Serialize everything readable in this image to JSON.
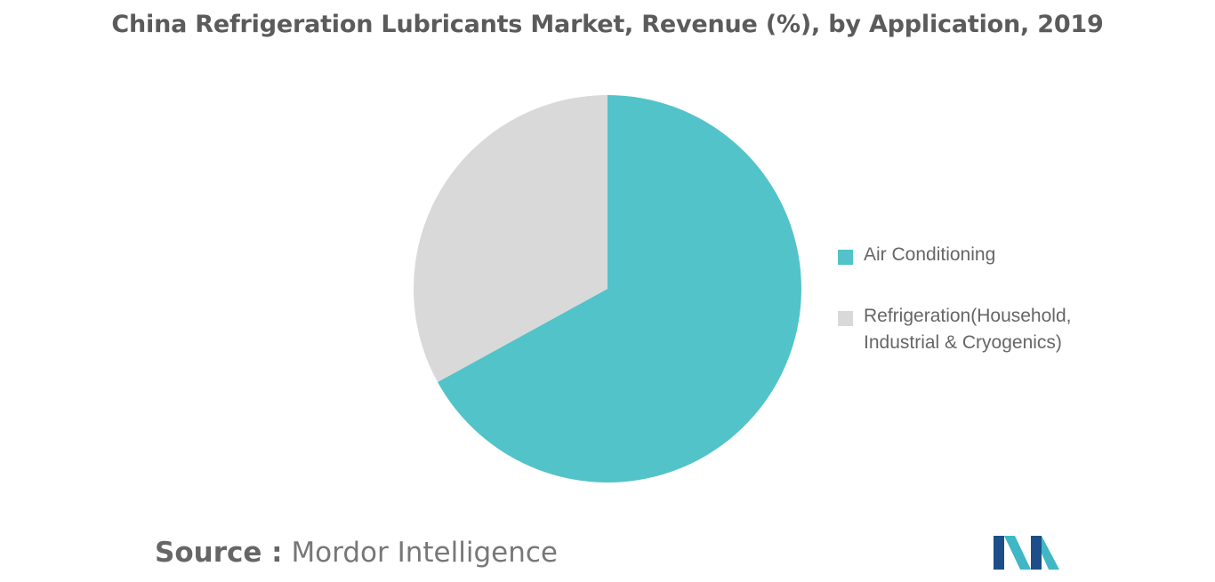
{
  "chart_data": {
    "type": "pie",
    "title": "China Refrigeration Lubricants Market, Revenue (%), by Application, 2019",
    "categories": [
      "Air Conditioning",
      "Refrigeration(Household, Industrial & Cryogenics)"
    ],
    "values": [
      67,
      33
    ],
    "colors": [
      "#52C3C9",
      "#D9D9D9"
    ],
    "start_angle_deg": 0,
    "direction": "clockwise",
    "legend_position": "right"
  },
  "source": {
    "label": "Source :",
    "value": "Mordor Intelligence"
  },
  "logo": {
    "name": "mordor-intelligence-logo",
    "colors": [
      "#1D4E89",
      "#3FB7C4"
    ]
  }
}
